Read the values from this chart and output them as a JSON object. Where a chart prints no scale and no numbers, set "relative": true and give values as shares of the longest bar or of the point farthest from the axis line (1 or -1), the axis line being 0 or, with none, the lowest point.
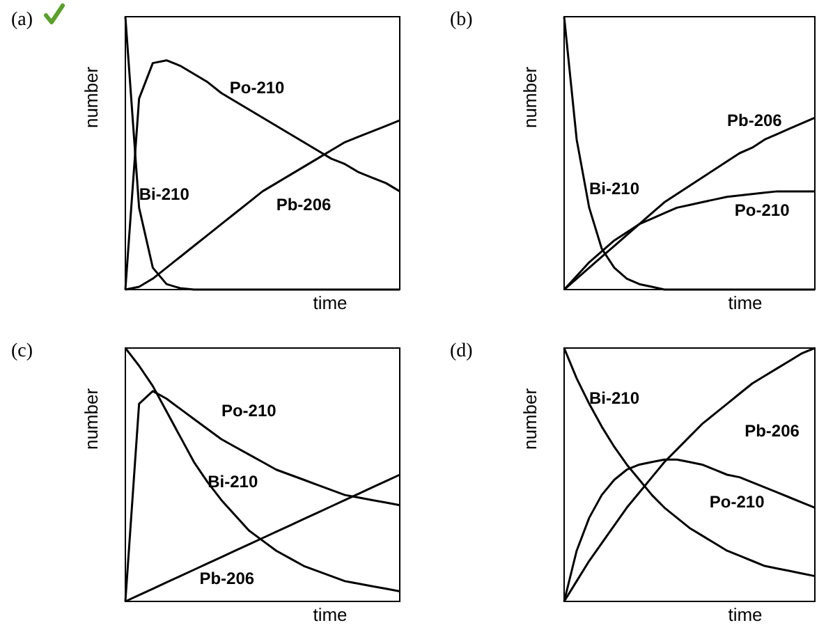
{
  "chart_data": [
    {
      "type": "line",
      "title": "(a)",
      "xlabel": "time",
      "ylabel": "number",
      "relative": true,
      "categories": [
        null,
        null,
        null,
        null,
        null,
        null,
        null,
        null,
        null,
        null,
        null,
        null,
        null,
        null,
        null,
        null,
        null,
        null,
        null,
        null,
        null
      ],
      "series": [
        {
          "name": "Bi-210",
          "color": "#000000",
          "values": [
            1,
            0.3,
            0.08,
            0.02,
            0.005,
            0,
            0,
            0,
            0,
            0,
            0,
            0,
            0,
            0,
            0,
            0,
            0,
            0,
            0,
            0,
            0
          ]
        },
        {
          "name": "Po-210",
          "color": "#000000",
          "values": [
            0,
            0.7,
            0.83,
            0.84,
            0.82,
            0.79,
            0.76,
            0.72,
            0.69,
            0.66,
            0.63,
            0.6,
            0.57,
            0.54,
            0.51,
            0.48,
            0.46,
            0.43,
            0.41,
            0.39,
            0.36
          ]
        },
        {
          "name": "Pb-206",
          "color": "#000000",
          "values": [
            0,
            0.01,
            0.04,
            0.08,
            0.12,
            0.16,
            0.2,
            0.24,
            0.28,
            0.32,
            0.36,
            0.39,
            0.42,
            0.45,
            0.48,
            0.51,
            0.54,
            0.56,
            0.58,
            0.6,
            0.62
          ]
        }
      ]
    },
    {
      "type": "line",
      "title": "(b)",
      "xlabel": "time",
      "ylabel": "number",
      "relative": true,
      "categories": [
        null,
        null,
        null,
        null,
        null,
        null,
        null,
        null,
        null,
        null,
        null,
        null,
        null,
        null,
        null,
        null,
        null,
        null,
        null,
        null,
        null
      ],
      "series": [
        {
          "name": "Bi-210",
          "color": "#000000",
          "values": [
            1,
            0.55,
            0.3,
            0.15,
            0.08,
            0.04,
            0.02,
            0.01,
            0,
            0,
            0,
            0,
            0,
            0,
            0,
            0,
            0,
            0,
            0,
            0,
            0
          ]
        },
        {
          "name": "Po-210",
          "color": "#000000",
          "values": [
            0,
            0.05,
            0.1,
            0.14,
            0.18,
            0.21,
            0.24,
            0.26,
            0.28,
            0.3,
            0.31,
            0.32,
            0.33,
            0.34,
            0.345,
            0.35,
            0.355,
            0.36,
            0.36,
            0.36,
            0.36
          ]
        },
        {
          "name": "Pb-206",
          "color": "#000000",
          "values": [
            0,
            0.04,
            0.08,
            0.12,
            0.16,
            0.2,
            0.24,
            0.28,
            0.32,
            0.35,
            0.38,
            0.41,
            0.44,
            0.47,
            0.5,
            0.52,
            0.55,
            0.57,
            0.59,
            0.61,
            0.63
          ]
        }
      ]
    },
    {
      "type": "line",
      "title": "(c)",
      "xlabel": "time",
      "ylabel": "number",
      "relative": true,
      "categories": [
        null,
        null,
        null,
        null,
        null,
        null,
        null,
        null,
        null,
        null,
        null,
        null,
        null,
        null,
        null,
        null,
        null,
        null,
        null,
        null,
        null
      ],
      "series": [
        {
          "name": "Bi-210",
          "color": "#000000",
          "values": [
            1,
            0.93,
            0.85,
            0.75,
            0.65,
            0.55,
            0.47,
            0.4,
            0.34,
            0.28,
            0.24,
            0.2,
            0.17,
            0.14,
            0.12,
            0.1,
            0.08,
            0.07,
            0.06,
            0.05,
            0.04
          ]
        },
        {
          "name": "Po-210",
          "color": "#000000",
          "values": [
            0,
            0.78,
            0.83,
            0.8,
            0.76,
            0.72,
            0.68,
            0.64,
            0.61,
            0.58,
            0.55,
            0.52,
            0.5,
            0.48,
            0.46,
            0.44,
            0.42,
            0.41,
            0.4,
            0.39,
            0.38
          ]
        },
        {
          "name": "Pb-206",
          "color": "#000000",
          "values": [
            0,
            0.025,
            0.05,
            0.075,
            0.1,
            0.125,
            0.15,
            0.175,
            0.2,
            0.225,
            0.25,
            0.275,
            0.3,
            0.325,
            0.35,
            0.375,
            0.4,
            0.425,
            0.45,
            0.475,
            0.5
          ]
        }
      ]
    },
    {
      "type": "line",
      "title": "(d)",
      "xlabel": "time",
      "ylabel": "number",
      "relative": true,
      "categories": [
        null,
        null,
        null,
        null,
        null,
        null,
        null,
        null,
        null,
        null,
        null,
        null,
        null,
        null,
        null,
        null,
        null,
        null,
        null,
        null,
        null
      ],
      "series": [
        {
          "name": "Bi-210",
          "color": "#000000",
          "values": [
            1,
            0.88,
            0.78,
            0.69,
            0.61,
            0.54,
            0.48,
            0.42,
            0.37,
            0.33,
            0.29,
            0.26,
            0.23,
            0.2,
            0.18,
            0.16,
            0.14,
            0.13,
            0.12,
            0.11,
            0.1
          ]
        },
        {
          "name": "Po-210",
          "color": "#000000",
          "values": [
            0,
            0.2,
            0.33,
            0.42,
            0.48,
            0.52,
            0.54,
            0.55,
            0.56,
            0.56,
            0.55,
            0.54,
            0.52,
            0.5,
            0.49,
            0.47,
            0.45,
            0.43,
            0.41,
            0.39,
            0.37
          ]
        },
        {
          "name": "Pb-206",
          "color": "#000000",
          "values": [
            0,
            0.08,
            0.16,
            0.23,
            0.3,
            0.37,
            0.43,
            0.49,
            0.55,
            0.6,
            0.65,
            0.7,
            0.74,
            0.78,
            0.82,
            0.86,
            0.89,
            0.92,
            0.95,
            0.98,
            1
          ]
        }
      ]
    }
  ]
}
